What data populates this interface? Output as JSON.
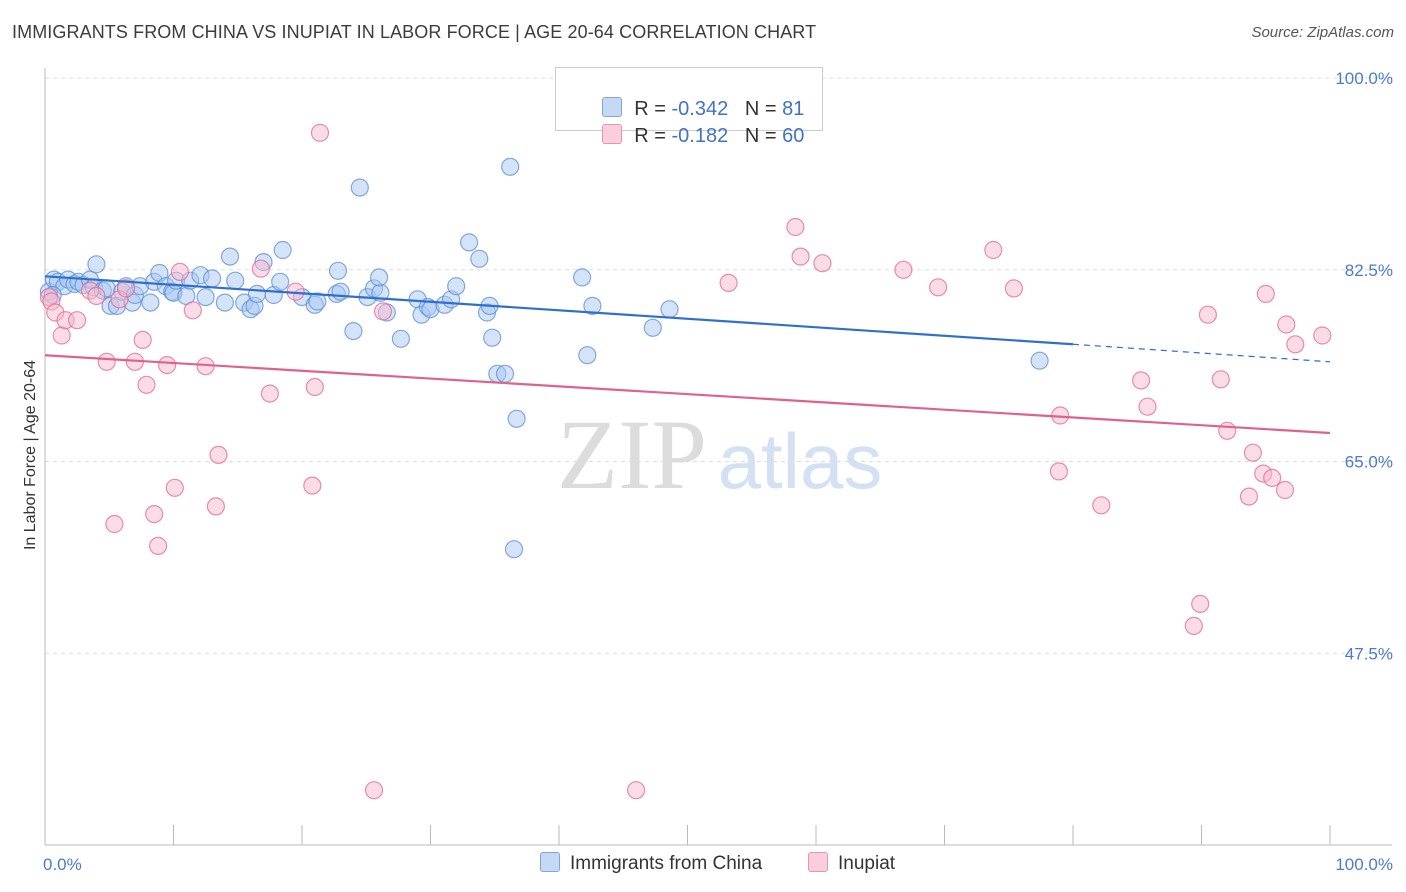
{
  "title": "IMMIGRANTS FROM CHINA VS INUPIAT IN LABOR FORCE | AGE 20-64 CORRELATION CHART",
  "source": "Source: ZipAtlas.com",
  "watermark": {
    "zip": "ZIP",
    "atlas": "atlas"
  },
  "legend": {
    "rows": [
      {
        "r_label": "R = ",
        "r_value": "-0.342",
        "n_label": "N = ",
        "n_value": "81",
        "color": "#a9c8f2"
      },
      {
        "r_label": "R = ",
        "r_value": "-0.182",
        "n_label": "N = ",
        "n_value": "60",
        "color": "#f6b9cd"
      }
    ]
  },
  "chart_data": {
    "type": "scatter",
    "xlabel": "",
    "ylabel": "In Labor Force | Age 20-64",
    "xlim": [
      0,
      100
    ],
    "ylim": [
      30,
      100
    ],
    "x_tick_labels": [
      "0.0%",
      "100.0%"
    ],
    "y_ticks": [
      47.5,
      65.0,
      82.5,
      100.0
    ],
    "y_tick_labels": [
      "47.5%",
      "65.0%",
      "82.5%",
      "100.0%"
    ],
    "grid": true,
    "legend_position": "bottom",
    "series": [
      {
        "name": "Immigrants from China",
        "color": "#5b8fd8",
        "fill": "#a9c8f2",
        "trend": {
          "x": [
            0,
            80,
            100
          ],
          "y": [
            81.9,
            75.7,
            74.1
          ],
          "solid_until": 80
        },
        "points": [
          [
            0.3,
            80.5
          ],
          [
            0.7,
            81.6
          ],
          [
            1,
            81.4
          ],
          [
            1.5,
            81.0
          ],
          [
            1.8,
            81.6
          ],
          [
            2.3,
            81.2
          ],
          [
            2.6,
            81.4
          ],
          [
            3,
            81.1
          ],
          [
            3.5,
            81.6
          ],
          [
            3.8,
            80.9
          ],
          [
            4,
            83.0
          ],
          [
            4.5,
            80.6
          ],
          [
            4.8,
            80.8
          ],
          [
            5.1,
            79.2
          ],
          [
            5.6,
            79.2
          ],
          [
            6,
            80.5
          ],
          [
            6.3,
            81.0
          ],
          [
            6.8,
            79.5
          ],
          [
            7,
            80.2
          ],
          [
            7.4,
            81.0
          ],
          [
            8.2,
            79.5
          ],
          [
            8.5,
            81.4
          ],
          [
            8.9,
            82.2
          ],
          [
            9.4,
            81.0
          ],
          [
            9.9,
            80.5
          ],
          [
            10,
            80.4
          ],
          [
            10.2,
            81.5
          ],
          [
            11,
            80.1
          ],
          [
            11.3,
            81.5
          ],
          [
            12.1,
            82.0
          ],
          [
            12.5,
            80.0
          ],
          [
            13,
            81.7
          ],
          [
            14,
            79.5
          ],
          [
            14.4,
            83.7
          ],
          [
            14.8,
            81.5
          ],
          [
            15.5,
            79.5
          ],
          [
            16,
            78.9
          ],
          [
            16.3,
            79.2
          ],
          [
            16.5,
            80.3
          ],
          [
            17,
            83.2
          ],
          [
            17.8,
            80.2
          ],
          [
            18.3,
            81.4
          ],
          [
            18.5,
            84.3
          ],
          [
            20,
            80.0
          ],
          [
            21,
            79.3
          ],
          [
            21.2,
            79.6
          ],
          [
            22.7,
            80.3
          ],
          [
            22.8,
            82.4
          ],
          [
            23,
            80.5
          ],
          [
            24,
            76.9
          ],
          [
            24.5,
            90.0
          ],
          [
            25.1,
            80.0
          ],
          [
            25.6,
            80.8
          ],
          [
            26.1,
            80.4
          ],
          [
            26,
            81.8
          ],
          [
            26.6,
            78.6
          ],
          [
            27.7,
            76.2
          ],
          [
            29,
            79.8
          ],
          [
            29.3,
            78.4
          ],
          [
            29.8,
            79.1
          ],
          [
            30,
            78.9
          ],
          [
            31.1,
            79.3
          ],
          [
            31.6,
            79.8
          ],
          [
            32,
            81.0
          ],
          [
            33,
            85.0
          ],
          [
            33.8,
            83.5
          ],
          [
            34.4,
            78.6
          ],
          [
            35.2,
            73.0
          ],
          [
            35.8,
            73.0
          ],
          [
            36.2,
            91.9
          ],
          [
            34.6,
            79.2
          ],
          [
            34.8,
            76.3
          ],
          [
            36.7,
            68.9
          ],
          [
            36.5,
            57.0
          ],
          [
            41.8,
            81.8
          ],
          [
            42.2,
            74.7
          ],
          [
            42.6,
            79.2
          ],
          [
            47.3,
            77.2
          ],
          [
            48.6,
            78.9
          ],
          [
            77.4,
            74.2
          ],
          [
            0.6,
            80.2
          ]
        ]
      },
      {
        "name": "Inupiat",
        "color": "#e36a91",
        "fill": "#f6b9cd",
        "trend": {
          "x": [
            0,
            100
          ],
          "y": [
            74.7,
            67.6
          ]
        },
        "points": [
          [
            0.3,
            80.0
          ],
          [
            0.5,
            79.6
          ],
          [
            0.8,
            78.6
          ],
          [
            1.3,
            76.5
          ],
          [
            1.6,
            77.9
          ],
          [
            2.5,
            77.9
          ],
          [
            3.5,
            80.6
          ],
          [
            4,
            80.1
          ],
          [
            4.8,
            74.1
          ],
          [
            5.4,
            59.3
          ],
          [
            5.8,
            79.8
          ],
          [
            6.3,
            80.8
          ],
          [
            7,
            74.1
          ],
          [
            7.6,
            76.1
          ],
          [
            7.9,
            72.0
          ],
          [
            8.5,
            60.2
          ],
          [
            8.8,
            57.3
          ],
          [
            9.5,
            73.8
          ],
          [
            10.1,
            62.6
          ],
          [
            10.5,
            82.3
          ],
          [
            11.5,
            78.8
          ],
          [
            12.5,
            73.7
          ],
          [
            13.5,
            65.6
          ],
          [
            13.3,
            60.9
          ],
          [
            16.8,
            82.6
          ],
          [
            17.5,
            71.2
          ],
          [
            19.5,
            80.5
          ],
          [
            20.8,
            62.8
          ],
          [
            21.4,
            95.0
          ],
          [
            21,
            71.8
          ],
          [
            26.3,
            78.7
          ],
          [
            25.6,
            35.0
          ],
          [
            46,
            35.0
          ],
          [
            53.2,
            81.3
          ],
          [
            58.4,
            86.4
          ],
          [
            58.8,
            83.7
          ],
          [
            60.5,
            83.1
          ],
          [
            66.8,
            82.5
          ],
          [
            69.5,
            80.9
          ],
          [
            73.8,
            84.3
          ],
          [
            75.4,
            80.8
          ],
          [
            79,
            69.2
          ],
          [
            78.9,
            64.1
          ],
          [
            82.2,
            61.0
          ],
          [
            85.3,
            72.4
          ],
          [
            85.8,
            70.0
          ],
          [
            89.4,
            50.0
          ],
          [
            89.9,
            52.0
          ],
          [
            90.5,
            78.4
          ],
          [
            91.5,
            72.5
          ],
          [
            92,
            67.8
          ],
          [
            93.7,
            61.8
          ],
          [
            94,
            65.8
          ],
          [
            94.8,
            63.9
          ],
          [
            95,
            80.3
          ],
          [
            95.5,
            63.5
          ],
          [
            96.5,
            62.4
          ],
          [
            96.6,
            77.5
          ],
          [
            97.3,
            75.7
          ],
          [
            99.4,
            76.5
          ]
        ]
      }
    ]
  },
  "bottom_legend": [
    "Immigrants from China",
    "Inupiat"
  ]
}
